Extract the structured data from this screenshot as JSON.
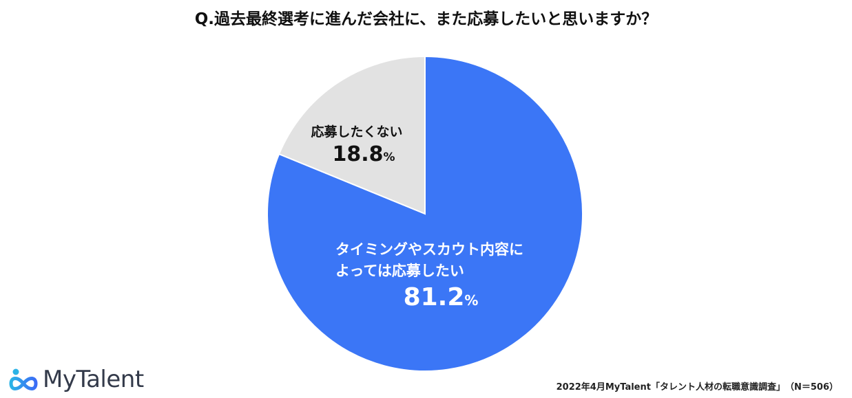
{
  "title": "Q.過去最終選考に進んだ会社に、また応募したいと思いますか？",
  "chart_data": {
    "type": "pie",
    "title": "Q.過去最終選考に進んだ会社に、また応募したいと思いますか？",
    "slices": [
      {
        "label_lines": [
          "タイミングやスカウト内容に",
          "よっては応募したい"
        ],
        "value": 81.2,
        "value_text": "81.2",
        "unit": "%",
        "color": "#3b76f6",
        "text_color": "#ffffff"
      },
      {
        "label_lines": [
          "応募したくない"
        ],
        "value": 18.8,
        "value_text": "18.8",
        "unit": "%",
        "color": "#e2e2e2",
        "text_color": "#111111"
      }
    ],
    "start": "12 o'clock",
    "direction": "clockwise"
  },
  "logo": {
    "text": "MyTalent",
    "icon": "infinity-person-icon"
  },
  "source": "2022年4月MyTalent「タレント人材の転職意識調査」　（N＝506）"
}
